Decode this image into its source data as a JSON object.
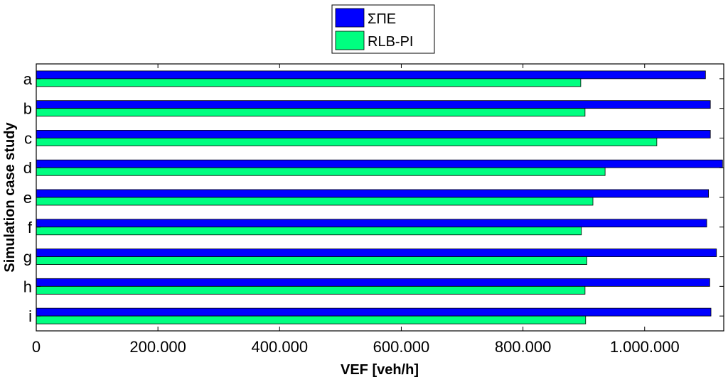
{
  "chart_data": {
    "type": "bar",
    "orientation": "horizontal",
    "title": "",
    "xlabel": "VEF [veh/h]",
    "ylabel": "Simulation case study",
    "categories": [
      "a",
      "b",
      "c",
      "d",
      "e",
      "f",
      "g",
      "h",
      "i"
    ],
    "series": [
      {
        "name": "ΣΠΕ",
        "color": "#0000ff",
        "values": [
          1100000,
          1108000,
          1108000,
          1128000,
          1105000,
          1102000,
          1118000,
          1107000,
          1109000
        ]
      },
      {
        "name": "RLB-PI",
        "color": "#00ff80",
        "values": [
          895000,
          902000,
          1020000,
          935000,
          915000,
          896000,
          905000,
          902000,
          903000
        ]
      }
    ],
    "xlim": [
      0,
      1130000
    ],
    "xticks": [
      0,
      200000,
      400000,
      600000,
      800000,
      1000000
    ],
    "xtick_labels": [
      "0",
      "200.000",
      "400.000",
      "600.000",
      "800.000",
      "1.000.000"
    ],
    "legend_position": "top-center",
    "grid": false
  }
}
